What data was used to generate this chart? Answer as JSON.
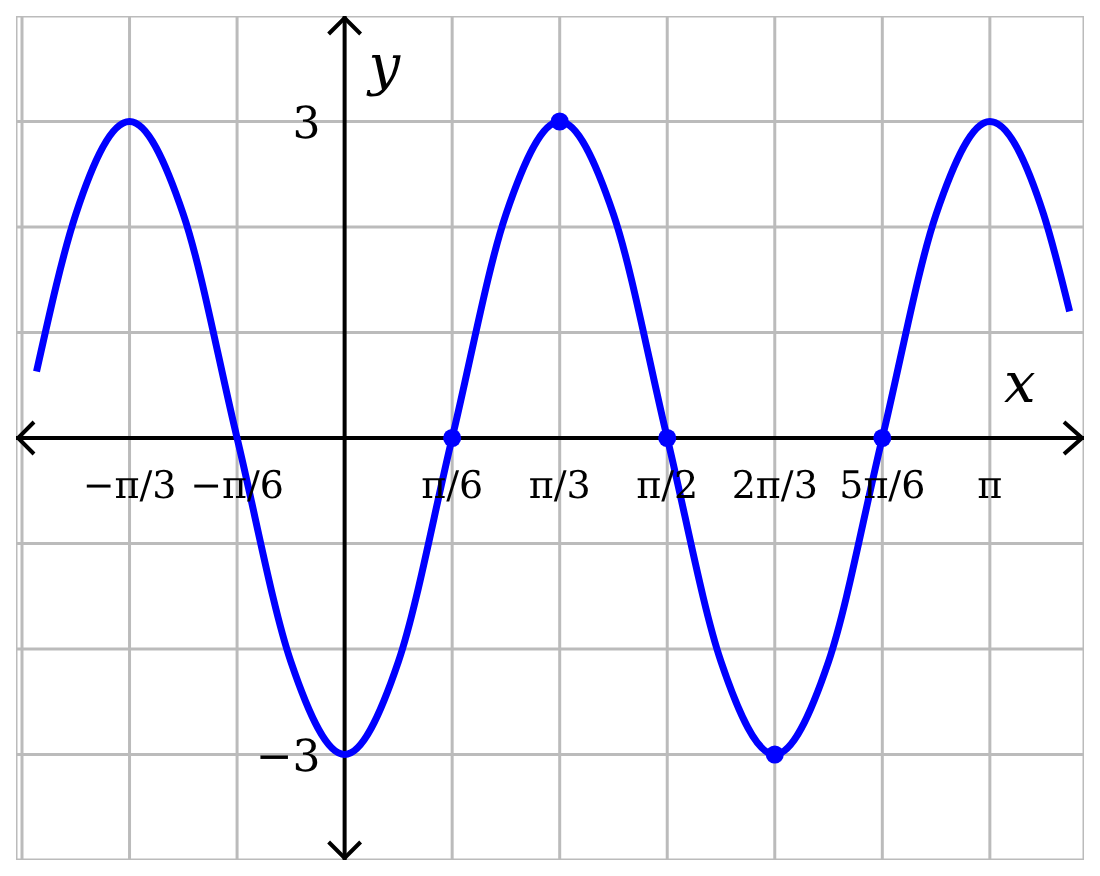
{
  "chart_data": {
    "type": "line",
    "xlabel": "x",
    "ylabel": "y",
    "xlim": [
      -1.6,
      3.6
    ],
    "ylim": [
      -4,
      4
    ],
    "xticks": [
      {
        "value": -1.5708,
        "label": null
      },
      {
        "value": -1.0472,
        "label": "−π/3"
      },
      {
        "value": -0.5236,
        "label": "−π/6"
      },
      {
        "value": 0,
        "label": null
      },
      {
        "value": 0.5236,
        "label": "π/6"
      },
      {
        "value": 1.0472,
        "label": "π/3"
      },
      {
        "value": 1.5708,
        "label": "π/2"
      },
      {
        "value": 2.0944,
        "label": "2π/3"
      },
      {
        "value": 2.618,
        "label": "5π/6"
      },
      {
        "value": 3.1416,
        "label": "π"
      }
    ],
    "yticks": [
      {
        "value": -3,
        "label": "−3"
      },
      {
        "value": -2,
        "label": null
      },
      {
        "value": -1,
        "label": null
      },
      {
        "value": 0,
        "label": null
      },
      {
        "value": 1,
        "label": null
      },
      {
        "value": 2,
        "label": null
      },
      {
        "value": 3,
        "label": "3"
      }
    ],
    "grid": true,
    "line_style": "solid",
    "series": [
      {
        "type": "line",
        "color": "#0000ff",
        "marker": "none",
        "x": [
          -1.5,
          -1.309,
          -1.0472,
          -0.7854,
          -0.5236,
          -0.2618,
          0,
          0.2618,
          0.5236,
          0.7854,
          1.0472,
          1.309,
          1.5708,
          1.8326,
          2.0944,
          2.3562,
          2.618,
          2.8798,
          3.1416,
          3.4034,
          3.53
        ],
        "values": [
          0.63,
          2.12,
          3,
          2.12,
          0,
          -2.12,
          -3,
          -2.12,
          0,
          2.12,
          3,
          2.12,
          0,
          -2.12,
          -3,
          -2.12,
          0,
          2.12,
          3,
          2.12,
          1.2
        ]
      },
      {
        "type": "scatter",
        "color": "#0000ff",
        "marker": "circle",
        "x": [
          0.5236,
          1.0472,
          1.5708,
          2.0944,
          2.618
        ],
        "values": [
          0,
          3,
          0,
          -3,
          0
        ]
      }
    ]
  }
}
